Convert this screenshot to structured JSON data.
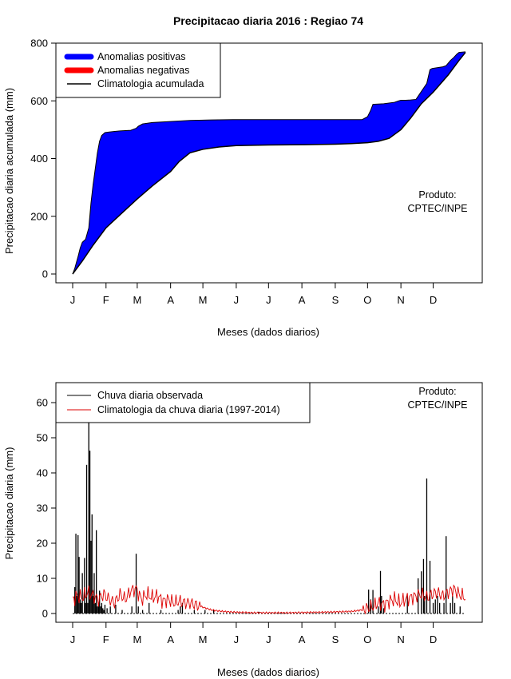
{
  "chart_data": [
    {
      "type": "area",
      "title": "Precipitacao diaria 2016 : Regiao 74",
      "xlabel": "Meses (dados diarios)",
      "ylabel": "Precipitacao diaria acumulada (mm)",
      "ylim": [
        0,
        800
      ],
      "xlim_day": [
        1,
        366
      ],
      "yticks": [
        0,
        200,
        400,
        600,
        800
      ],
      "month_labels": [
        "J",
        "F",
        "M",
        "A",
        "M",
        "J",
        "J",
        "A",
        "S",
        "O",
        "N",
        "D"
      ],
      "month_start_days": [
        1,
        32,
        61,
        92,
        122,
        153,
        183,
        214,
        245,
        275,
        306,
        336
      ],
      "legend": [
        "Anomalias positivas",
        "Anomalias negativas",
        "Climatologia acumulada"
      ],
      "legend_position": "top-left",
      "annotation": [
        "Produto:",
        "CPTEC/INPE"
      ],
      "colors": {
        "positive": "#0000ff",
        "negative": "#ff0000",
        "climatology": "#000000"
      },
      "observed_cumulative": {
        "day": [
          1,
          3,
          6,
          8,
          10,
          13,
          16,
          18,
          20,
          22,
          24,
          26,
          28,
          31,
          35,
          40,
          45,
          55,
          60,
          62,
          66,
          75,
          90,
          110,
          130,
          150,
          170,
          190,
          210,
          230,
          250,
          270,
          275,
          278,
          280,
          290,
          300,
          304,
          306,
          310,
          315,
          320,
          330,
          333,
          335,
          345,
          348,
          352,
          355,
          358,
          360,
          366
        ],
        "value": [
          0,
          20,
          60,
          90,
          110,
          120,
          160,
          245,
          310,
          365,
          420,
          460,
          480,
          490,
          492,
          494,
          496,
          498,
          505,
          512,
          520,
          525,
          528,
          532,
          534,
          535,
          535,
          535,
          535,
          535,
          535,
          535,
          545,
          568,
          588,
          590,
          595,
          600,
          602,
          602,
          603,
          605,
          660,
          708,
          712,
          718,
          722,
          740,
          750,
          762,
          768,
          770
        ]
      },
      "climatology_cumulative": {
        "day": [
          1,
          10,
          20,
          32,
          45,
          61,
          75,
          92,
          100,
          110,
          122,
          137,
          153,
          183,
          214,
          245,
          260,
          275,
          285,
          295,
          306,
          315,
          325,
          336,
          350,
          360,
          366
        ],
        "value": [
          0,
          45,
          100,
          160,
          205,
          260,
          305,
          355,
          390,
          420,
          432,
          440,
          445,
          447,
          448,
          450,
          452,
          455,
          460,
          470,
          500,
          540,
          590,
          630,
          690,
          740,
          768
        ]
      }
    },
    {
      "type": "line",
      "xlabel": "Meses (dados diarios)",
      "ylabel": "Precipitacao diaria (mm)",
      "ylim": [
        0,
        65
      ],
      "xlim_day": [
        1,
        366
      ],
      "yticks": [
        0,
        10,
        20,
        30,
        40,
        50,
        60
      ],
      "month_labels": [
        "J",
        "F",
        "M",
        "A",
        "M",
        "J",
        "J",
        "A",
        "S",
        "O",
        "N",
        "D"
      ],
      "month_start_days": [
        1,
        32,
        61,
        92,
        122,
        153,
        183,
        214,
        245,
        275,
        306,
        336
      ],
      "legend": [
        "Chuva diaria observada",
        "Climatologia da chuva diaria (1997-2014)"
      ],
      "legend_position": "top-left",
      "annotation": [
        "Produto:",
        "CPTEC/INPE"
      ],
      "colors": {
        "observed": "#000000",
        "climatology": "#dd0000"
      },
      "observed_daily_peaks": {
        "day": [
          3,
          4,
          5,
          6,
          7,
          8,
          9,
          10,
          12,
          13,
          14,
          15,
          16,
          17,
          18,
          19,
          20,
          21,
          22,
          23,
          24,
          25,
          26,
          27,
          28,
          29,
          30,
          31,
          33,
          36,
          41,
          47,
          56,
          60,
          62,
          66,
          72,
          83,
          99,
          101,
          103,
          114,
          124,
          132,
          174,
          276,
          278,
          280,
          285,
          287,
          288,
          290,
          312,
          322,
          325,
          327,
          328,
          330,
          333,
          336,
          338,
          340,
          342,
          346,
          348,
          352,
          354,
          356,
          361
        ],
        "value": [
          7.5,
          22.7,
          5,
          22.3,
          16.1,
          4,
          3,
          11.5,
          15.8,
          3,
          42.3,
          3,
          54.4,
          46.3,
          20.7,
          28.2,
          5,
          11.5,
          3,
          23.7,
          2,
          3,
          6.5,
          2,
          3,
          1.5,
          1,
          2.5,
          1.5,
          2,
          2.5,
          1,
          2,
          17,
          2,
          1,
          3,
          1,
          1,
          2,
          3,
          1,
          1,
          1,
          0.5,
          6.8,
          4,
          6.7,
          2,
          12.1,
          5,
          1.5,
          5,
          10,
          12,
          15.5,
          5,
          38.4,
          15,
          3,
          4,
          5,
          3,
          3,
          22,
          3,
          5,
          3,
          2
        ]
      },
      "climatology_daily": {
        "day": [
          1,
          5,
          10,
          15,
          20,
          25,
          30,
          35,
          40,
          45,
          50,
          55,
          60,
          65,
          70,
          75,
          80,
          85,
          90,
          95,
          100,
          105,
          110,
          115,
          120,
          125,
          130,
          135,
          140,
          150,
          160,
          170,
          180,
          200,
          220,
          240,
          260,
          270,
          275,
          280,
          285,
          290,
          295,
          300,
          305,
          310,
          315,
          320,
          325,
          330,
          335,
          340,
          345,
          350,
          355,
          360,
          366
        ],
        "value": [
          4,
          5,
          4.5,
          6,
          5,
          4,
          5.5,
          4,
          3,
          5.5,
          4,
          6.5,
          7,
          4,
          5.5,
          4.5,
          5,
          3.5,
          4,
          3,
          3.5,
          3,
          3,
          2.5,
          2,
          1.5,
          1,
          0.8,
          0.6,
          0.4,
          0.3,
          0.2,
          0.2,
          0.2,
          0.3,
          0.4,
          0.6,
          1,
          1.5,
          2,
          3,
          2.5,
          3.5,
          4,
          3,
          4,
          4.5,
          5,
          5.5,
          4.5,
          5.5,
          6,
          5,
          6,
          7,
          5.5,
          4.5
        ]
      }
    }
  ]
}
